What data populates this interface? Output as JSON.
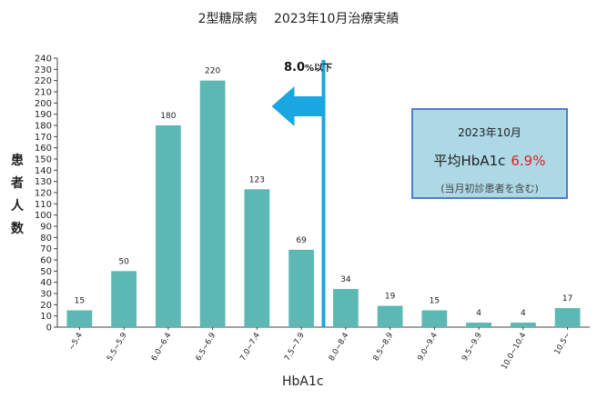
{
  "page_title": "2型糖尿病　 2023年10月治療実績",
  "y_axis_label_chars": [
    "患",
    "者",
    "人",
    "数"
  ],
  "threshold": {
    "value_label": "8.0",
    "suffix": "%以下"
  },
  "info_box": {
    "title": "2023年10月",
    "main_label": "平均HbA1c",
    "main_value": "6.9%",
    "note": "(当月初診患者を含む)"
  },
  "colors": {
    "bar": "#5bb8b4",
    "threshold_line": "#1aa6e0",
    "arrow": "#1aa6e0",
    "info_box_fill": "#add8e6",
    "info_box_border": "#4f7fc6",
    "highlight_value": "#e02020"
  },
  "chart_data": {
    "type": "bar",
    "title": "2型糖尿病　 2023年10月治療実績",
    "xlabel": "HbA1c",
    "ylabel": "患者人数",
    "categories": [
      "~5.4",
      "5.5~5.9",
      "6.0~6.4",
      "6.5~6.9",
      "7.0~7.4",
      "7.5~7.9",
      "8.0~8.4",
      "8.5~8.9",
      "9.0~9.4",
      "9.5~9.9",
      "10.0~10.4",
      "10.5~"
    ],
    "values": [
      15,
      50,
      180,
      220,
      123,
      69,
      34,
      19,
      15,
      4,
      4,
      17
    ],
    "ylim": [
      0,
      240
    ],
    "yticks": [
      0,
      10,
      20,
      30,
      40,
      50,
      60,
      70,
      80,
      90,
      100,
      110,
      120,
      130,
      140,
      150,
      160,
      170,
      180,
      190,
      200,
      210,
      220,
      230,
      240
    ],
    "grid": false,
    "threshold_x": "8.0"
  }
}
